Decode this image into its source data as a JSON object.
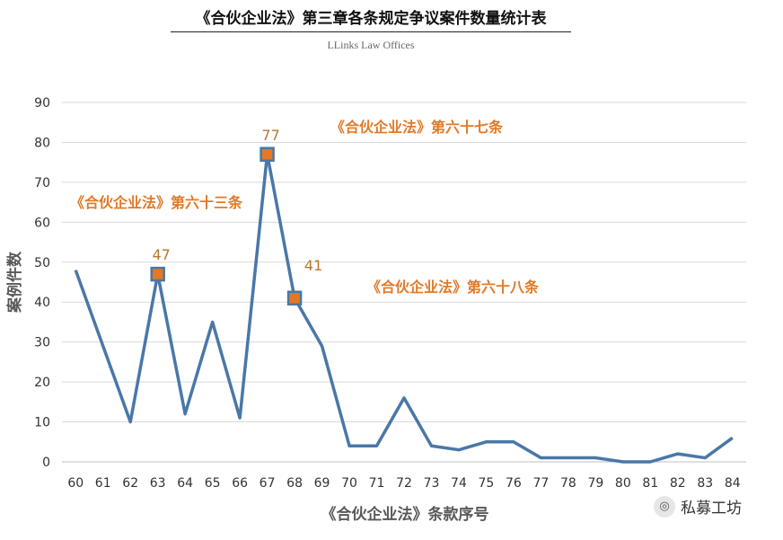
{
  "chart_data": {
    "type": "line",
    "title": "《合伙企业法》第三章各条规定争议案件数量统计表",
    "subtitle": "LLinks Law Offices",
    "xlabel": "《合伙企业法》条款序号",
    "ylabel": "案例件数",
    "ylim": [
      0,
      90
    ],
    "yticks": [
      0,
      10,
      20,
      30,
      40,
      50,
      60,
      70,
      80,
      90
    ],
    "categories": [
      "60",
      "61",
      "62",
      "63",
      "64",
      "65",
      "66",
      "67",
      "68",
      "69",
      "70",
      "71",
      "72",
      "73",
      "74",
      "75",
      "76",
      "77",
      "78",
      "79",
      "80",
      "81",
      "82",
      "83",
      "84"
    ],
    "values": [
      48,
      29,
      10,
      47,
      12,
      35,
      11,
      77,
      41,
      29,
      4,
      4,
      16,
      4,
      3,
      5,
      5,
      1,
      1,
      1,
      0,
      0,
      2,
      1,
      6
    ],
    "grid": true,
    "line_color": "#4a77a8",
    "marker_color": "#e87722",
    "highlights": [
      {
        "category": "63",
        "value": 47,
        "label": "47"
      },
      {
        "category": "67",
        "value": 77,
        "label": "77"
      },
      {
        "category": "68",
        "value": 41,
        "label": "41"
      }
    ],
    "annotations": [
      "《合伙企业法》第六十三条",
      "《合伙企业法》第六十七条",
      "《合伙企业法》第六十八条"
    ],
    "annotation_color": "#e07a28"
  },
  "watermark": {
    "text": "私募工坊",
    "icon": "wechat-icon"
  }
}
